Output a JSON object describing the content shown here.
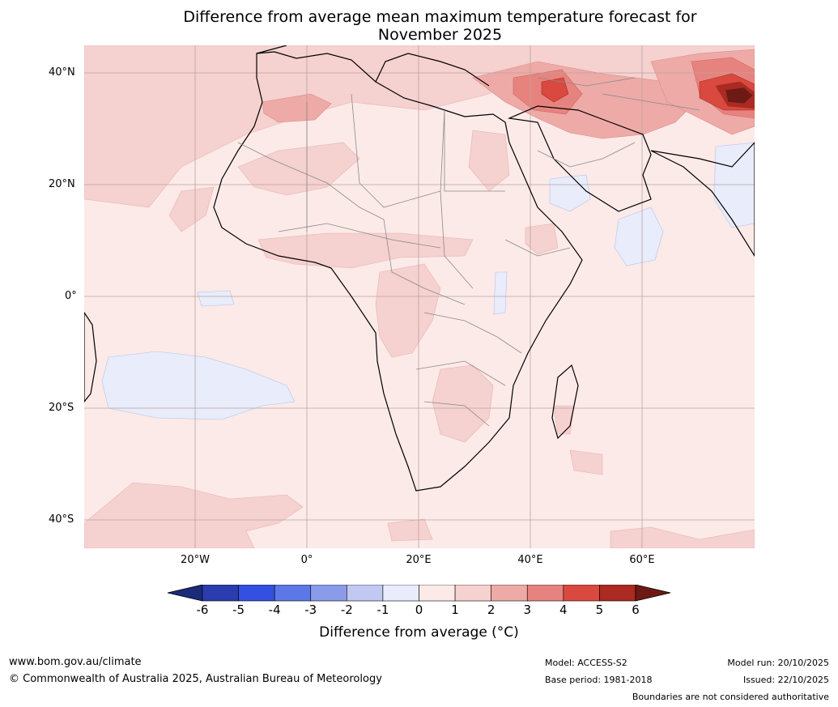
{
  "title": {
    "line1": "Difference from average mean maximum temperature forecast for",
    "line2": "November 2025"
  },
  "map": {
    "region": "Africa and surrounding oceans",
    "latitude_labels": [
      "40°N",
      "20°N",
      "0°",
      "20°S",
      "40°S"
    ],
    "longitude_labels": [
      "20°W",
      "0°",
      "20°E",
      "40°E",
      "60°E"
    ]
  },
  "colorbar": {
    "label": "Difference from average (°C)",
    "ticks": [
      "-6",
      "-5",
      "-4",
      "-3",
      "-2",
      "-1",
      "0",
      "1",
      "2",
      "3",
      "4",
      "5",
      "6"
    ],
    "colors": [
      "#1b2a7a",
      "#2a3cae",
      "#3350e0",
      "#5c78e6",
      "#8a9bea",
      "#c1c9f2",
      "#e8ecfb",
      "#fbeae8",
      "#f5d1cf",
      "#eeaaa7",
      "#e7837e",
      "#d9493f",
      "#ab2a22",
      "#6d1a15"
    ]
  },
  "footer": {
    "website": "www.bom.gov.au/climate",
    "copyright": "© Commonwealth of Australia 2025, Australian Bureau of Meteorology",
    "model": "Model: ACCESS-S2",
    "base_period": "Base period: 1981-2018",
    "model_run": "Model run: 20/10/2025",
    "issued": "Issued: 22/10/2025",
    "disclaimer": "Boundaries are not considered authoritative"
  }
}
